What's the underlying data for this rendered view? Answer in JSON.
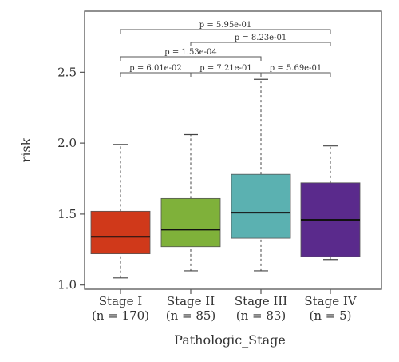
{
  "chart_data": {
    "type": "boxplot",
    "xlabel": "Pathologic_Stage",
    "ylabel": "risk",
    "ylim": [
      0.97,
      2.93
    ],
    "yticks": [
      "1.0",
      "1.5",
      "2.0",
      "2.5"
    ],
    "grid": false,
    "groups": [
      {
        "name": "Stage I",
        "n_label": "(n = 170)",
        "color": "#d0391a",
        "min": 1.05,
        "q1": 1.22,
        "median": 1.34,
        "q3": 1.52,
        "max": 1.99
      },
      {
        "name": "Stage II",
        "n_label": "(n = 85)",
        "color": "#7fb13a",
        "min": 1.1,
        "q1": 1.27,
        "median": 1.39,
        "q3": 1.61,
        "max": 2.06
      },
      {
        "name": "Stage III",
        "n_label": "(n = 83)",
        "color": "#5bb1b1",
        "min": 1.1,
        "q1": 1.33,
        "median": 1.51,
        "q3": 1.78,
        "max": 2.45
      },
      {
        "name": "Stage IV",
        "n_label": "(n = 5)",
        "color": "#5a2a8c",
        "min": 1.18,
        "q1": 1.2,
        "median": 1.46,
        "q3": 1.72,
        "max": 1.98
      }
    ],
    "comparisons": [
      {
        "from": 0,
        "to": 1,
        "label": "p = 6.01e-02",
        "level": 0
      },
      {
        "from": 1,
        "to": 2,
        "label": "p = 7.21e-01",
        "level": 0
      },
      {
        "from": 2,
        "to": 3,
        "label": "p = 5.69e-01",
        "level": 0
      },
      {
        "from": 0,
        "to": 2,
        "label": "p = 1.53e-04",
        "level": 1
      },
      {
        "from": 1,
        "to": 3,
        "label": "p = 8.23e-01",
        "level": 2
      },
      {
        "from": 0,
        "to": 3,
        "label": "p = 5.95e-01",
        "level": 3
      }
    ]
  }
}
